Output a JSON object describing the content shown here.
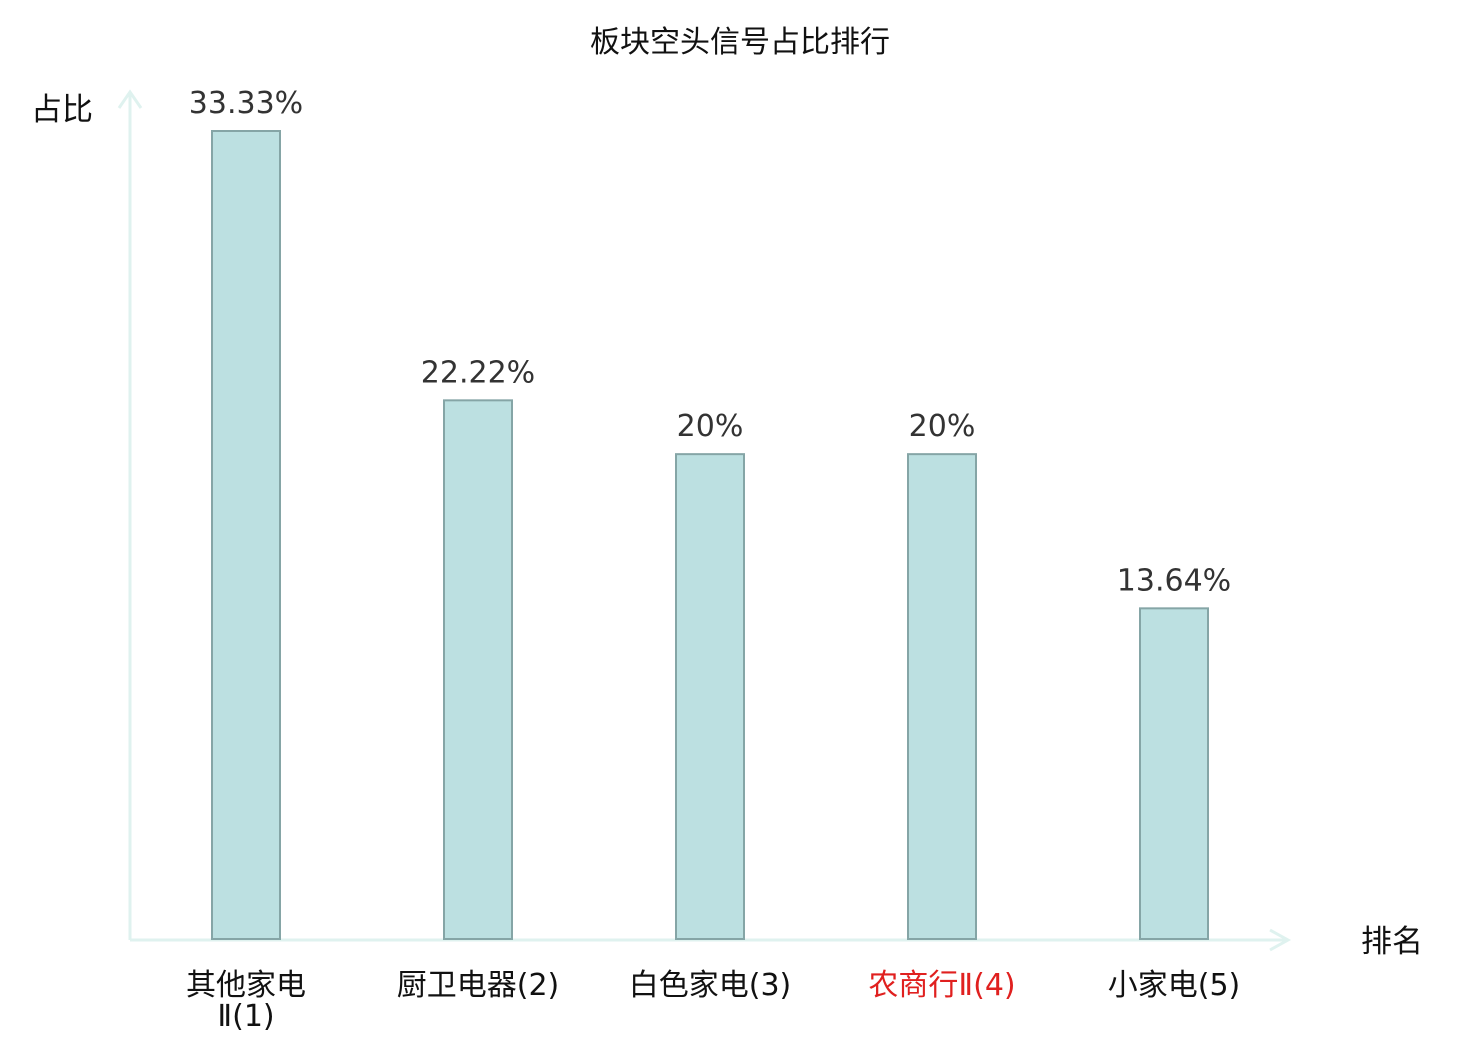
{
  "chart_data": {
    "type": "bar",
    "title": "板块空头信号占比排行",
    "ylabel": "占比",
    "xlabel": "排名",
    "categories": [
      "其他家电Ⅱ(1)",
      "厨卫电器(2)",
      "白色家电(3)",
      "农商行Ⅱ(4)",
      "小家电(5)"
    ],
    "category_lines": [
      [
        "其他家电",
        "Ⅱ(1)"
      ],
      [
        "厨卫电器(2)"
      ],
      [
        "白色家电(3)"
      ],
      [
        "农商行Ⅱ(4)"
      ],
      [
        "小家电(5)"
      ]
    ],
    "values": [
      33.33,
      22.22,
      20,
      20,
      13.64
    ],
    "value_labels": [
      "33.33%",
      "22.22%",
      "20%",
      "20%",
      "13.64%"
    ],
    "highlight_index": 3,
    "ylim": [
      0,
      33.33
    ],
    "grid": false,
    "colors": {
      "bar_fill": "#bce0e1",
      "bar_stroke": "#85a5a6",
      "axis": "#dff2ef",
      "highlight_text": "#e0201f",
      "text": "#111111",
      "value_text": "#333333"
    }
  }
}
